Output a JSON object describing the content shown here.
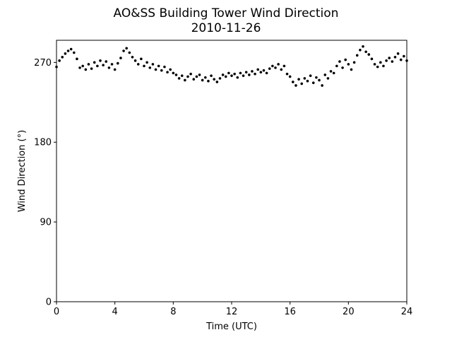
{
  "chart_data": {
    "type": "scatter",
    "title": "AO&SS Building Tower Wind Direction",
    "subtitle": "2010-11-26",
    "x_label": "Time (UTC)",
    "y_label": "Wind Direction (°)",
    "xlim": [
      0,
      24
    ],
    "xticks": [
      0,
      4,
      8,
      12,
      16,
      20,
      24
    ],
    "ylim": [
      0,
      295
    ],
    "yticks": [
      0,
      90,
      180,
      270
    ],
    "grid": false,
    "series": [
      {
        "name": "Wind Direction",
        "color": "#000000",
        "x": [
          0,
          0.2,
          0.4,
          0.6,
          0.8,
          1,
          1.2,
          1.4,
          1.6,
          1.8,
          2,
          2.2,
          2.4,
          2.6,
          2.8,
          3,
          3.2,
          3.4,
          3.6,
          3.8,
          4,
          4.2,
          4.4,
          4.6,
          4.8,
          5,
          5.2,
          5.4,
          5.6,
          5.8,
          6,
          6.2,
          6.4,
          6.6,
          6.8,
          7,
          7.2,
          7.4,
          7.6,
          7.8,
          8,
          8.2,
          8.4,
          8.6,
          8.8,
          9,
          9.2,
          9.4,
          9.6,
          9.8,
          10,
          10.2,
          10.4,
          10.6,
          10.8,
          11,
          11.2,
          11.4,
          11.6,
          11.8,
          12,
          12.2,
          12.4,
          12.6,
          12.8,
          13,
          13.2,
          13.4,
          13.6,
          13.8,
          14,
          14.2,
          14.4,
          14.6,
          14.8,
          15,
          15.2,
          15.4,
          15.6,
          15.8,
          16,
          16.2,
          16.4,
          16.6,
          16.8,
          17,
          17.2,
          17.4,
          17.6,
          17.8,
          18,
          18.2,
          18.4,
          18.6,
          18.8,
          19,
          19.2,
          19.4,
          19.6,
          19.8,
          20,
          20.2,
          20.4,
          20.6,
          20.8,
          21,
          21.2,
          21.4,
          21.6,
          21.8,
          22,
          22.2,
          22.4,
          22.6,
          22.8,
          23,
          23.2,
          23.4,
          23.6,
          23.8,
          24
        ],
        "values": [
          265,
          272,
          276,
          280,
          283,
          285,
          281,
          274,
          264,
          266,
          262,
          268,
          263,
          270,
          266,
          272,
          267,
          271,
          264,
          268,
          262,
          269,
          275,
          283,
          286,
          281,
          276,
          272,
          268,
          274,
          266,
          270,
          264,
          268,
          262,
          266,
          261,
          265,
          259,
          262,
          258,
          256,
          252,
          255,
          250,
          254,
          257,
          251,
          254,
          256,
          250,
          253,
          249,
          255,
          251,
          248,
          252,
          256,
          254,
          258,
          255,
          257,
          253,
          258,
          255,
          259,
          256,
          260,
          257,
          262,
          259,
          261,
          258,
          263,
          266,
          264,
          268,
          262,
          266,
          257,
          254,
          248,
          244,
          251,
          246,
          252,
          249,
          255,
          247,
          253,
          250,
          244,
          256,
          252,
          260,
          258,
          266,
          271,
          264,
          273,
          268,
          262,
          270,
          278,
          284,
          288,
          282,
          279,
          274,
          268,
          265,
          270,
          266,
          272,
          275,
          271,
          276,
          280,
          273,
          277,
          272
        ]
      }
    ]
  }
}
